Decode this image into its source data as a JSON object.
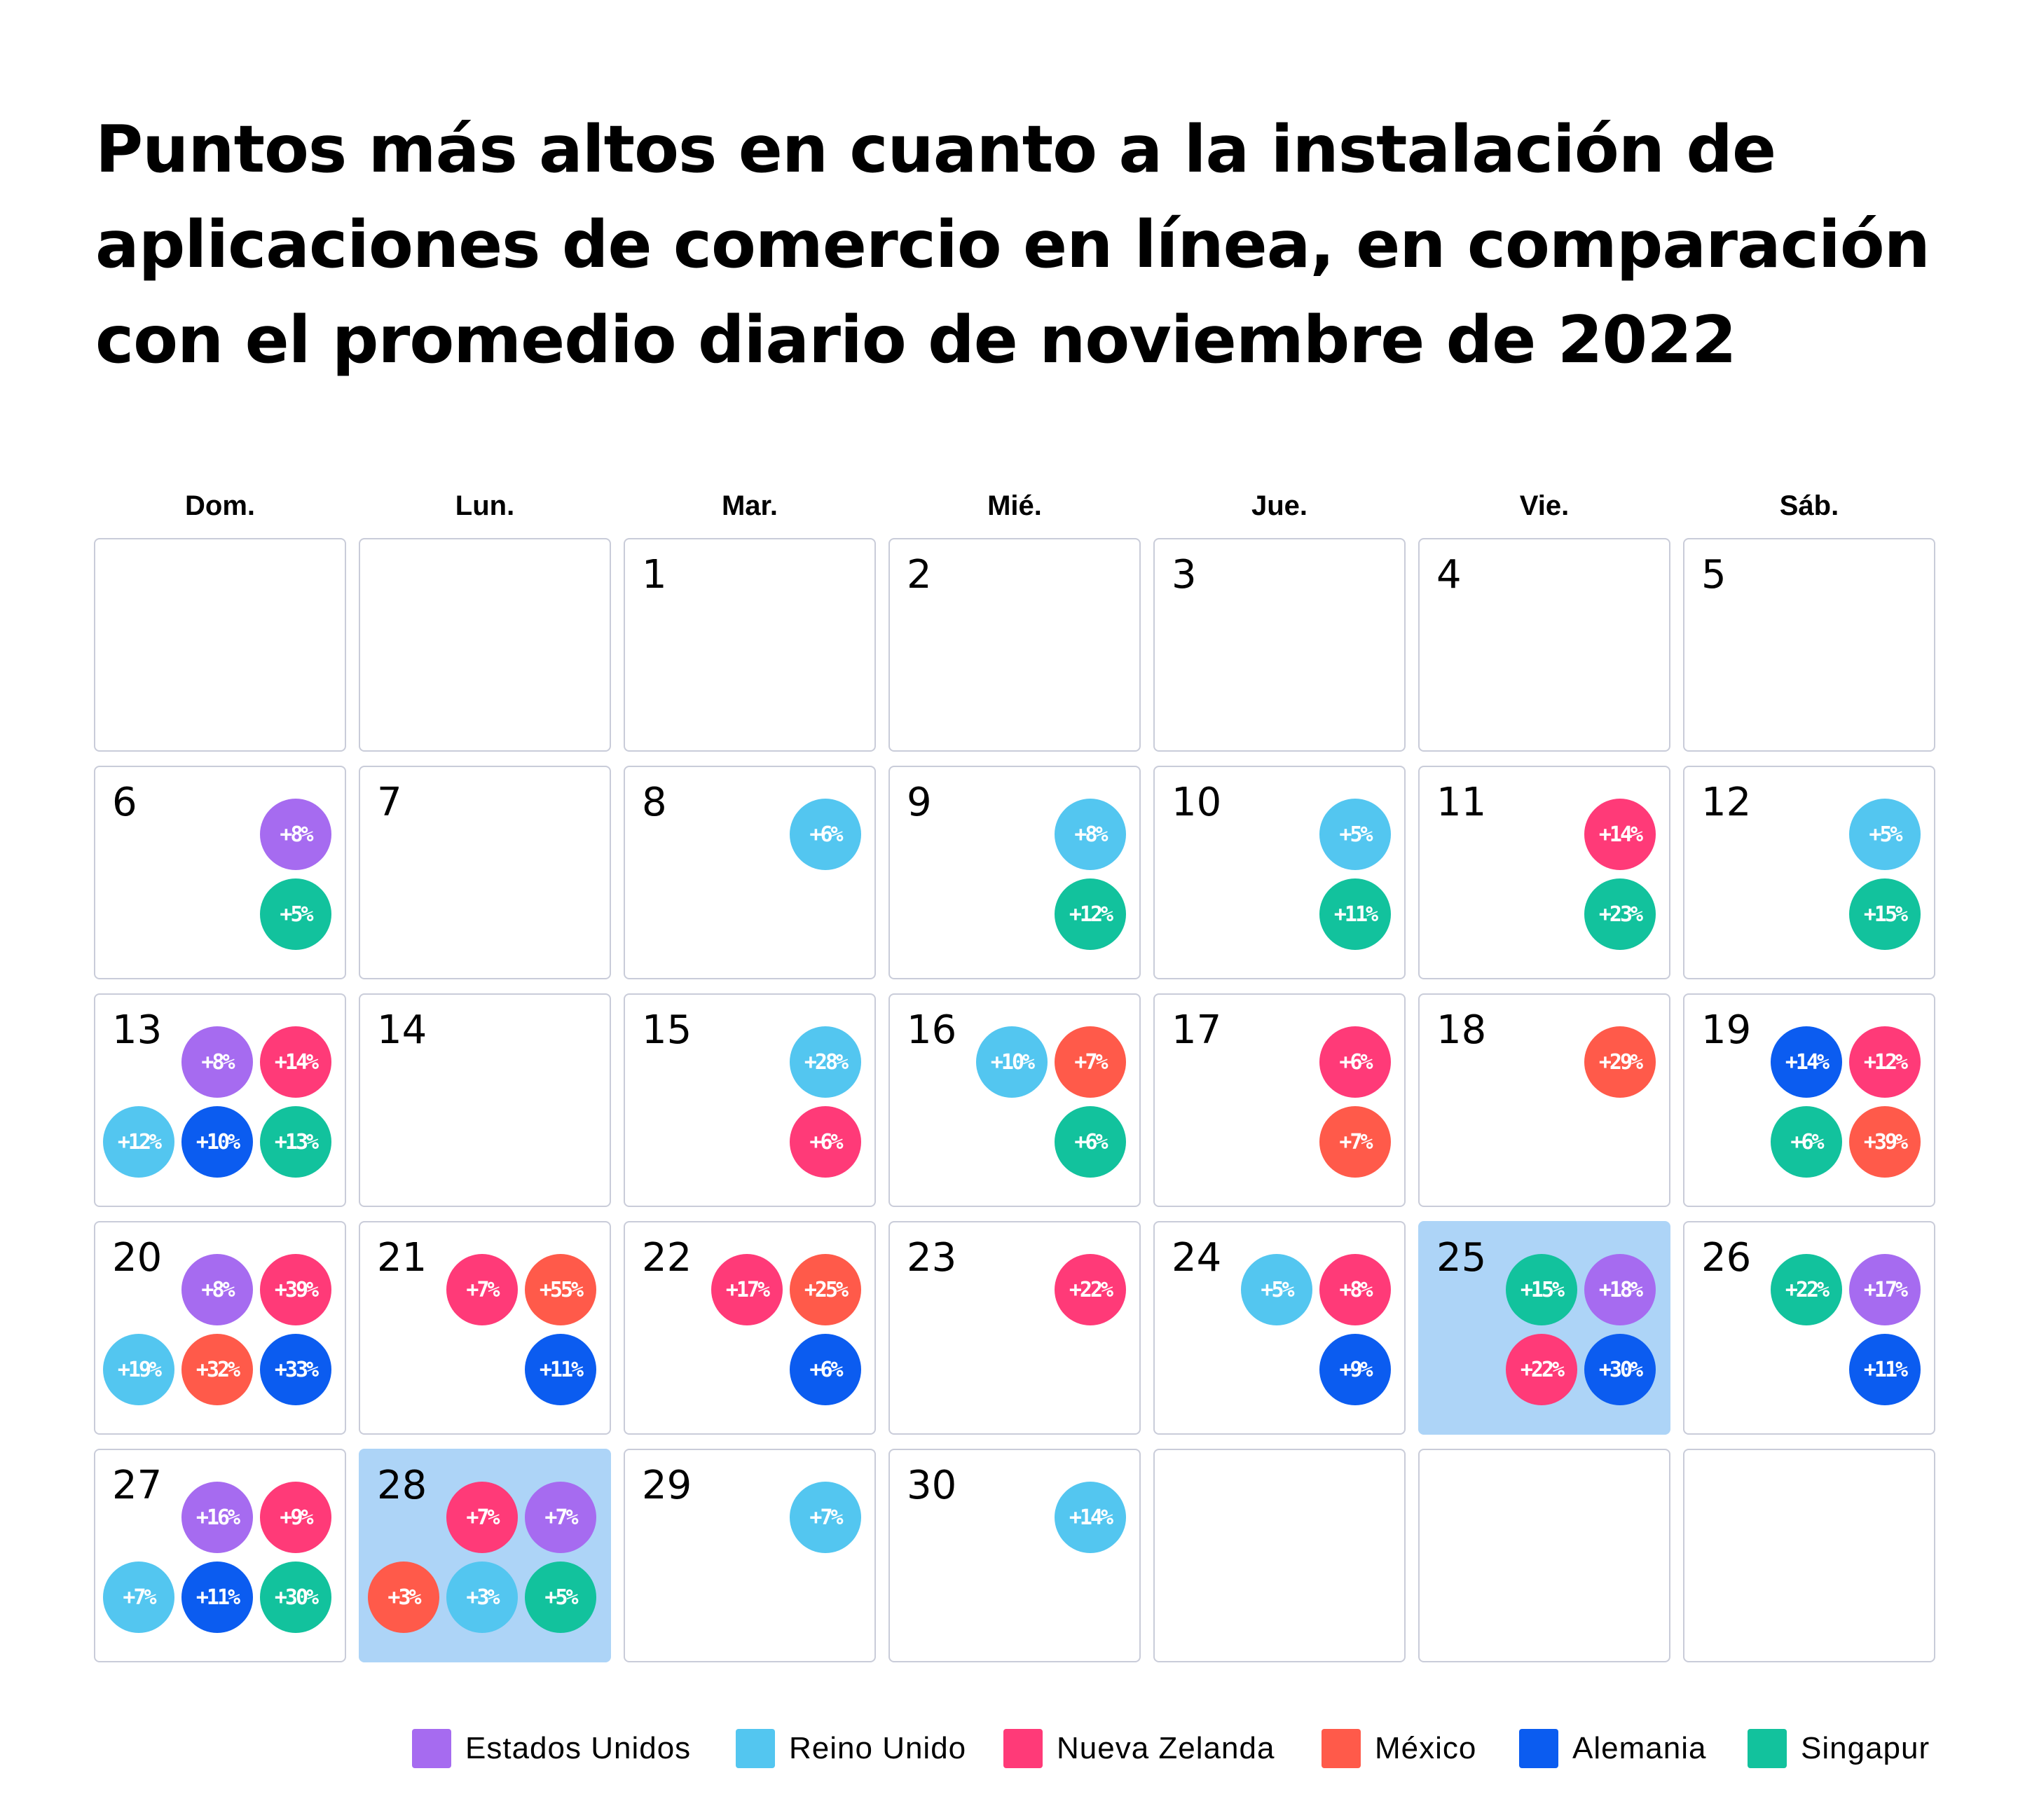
{
  "title": "Puntos más altos en cuanto a la instalación de aplicaciones de comercio en línea, en comparación con el promedio diario de noviembre de 2022",
  "chart_data": {
    "type": "calendar",
    "title": "Puntos más altos en cuanto a la instalación de aplicaciones de comercio en línea, en comparación con el promedio diario de noviembre de 2022",
    "month": "noviembre de 2022",
    "first_weekday_index": 2,
    "days_in_month": 30,
    "weekdays": [
      "Dom.",
      "Lun.",
      "Mar.",
      "Mié.",
      "Jue.",
      "Vie.",
      "Sáb."
    ],
    "highlighted_days": [
      25,
      28
    ],
    "series": [
      {
        "key": "us",
        "name": "Estados Unidos",
        "color": "#a66bf0"
      },
      {
        "key": "uk",
        "name": "Reino Unido",
        "color": "#53c6f0"
      },
      {
        "key": "nz",
        "name": "Nueva Zelanda",
        "color": "#ff3a78"
      },
      {
        "key": "mx",
        "name": "México",
        "color": "#ff5a4a"
      },
      {
        "key": "de",
        "name": "Alemania",
        "color": "#0b5cf0"
      },
      {
        "key": "sg",
        "name": "Singapur",
        "color": "#12c29d"
      }
    ],
    "days": {
      "6": {
        "top": [
          [
            "us",
            "+8%"
          ]
        ],
        "bottom": [
          [
            "sg",
            "+5%"
          ]
        ]
      },
      "8": {
        "top": [
          [
            "uk",
            "+6%"
          ]
        ],
        "bottom": []
      },
      "9": {
        "top": [
          [
            "uk",
            "+8%"
          ]
        ],
        "bottom": [
          [
            "sg",
            "+12%"
          ]
        ]
      },
      "10": {
        "top": [
          [
            "uk",
            "+5%"
          ]
        ],
        "bottom": [
          [
            "sg",
            "+11%"
          ]
        ]
      },
      "11": {
        "top": [
          [
            "nz",
            "+14%"
          ]
        ],
        "bottom": [
          [
            "sg",
            "+23%"
          ]
        ]
      },
      "12": {
        "top": [
          [
            "uk",
            "+5%"
          ]
        ],
        "bottom": [
          [
            "sg",
            "+15%"
          ]
        ]
      },
      "13": {
        "top": [
          [
            "us",
            "+8%"
          ],
          [
            "nz",
            "+14%"
          ]
        ],
        "bottom": [
          [
            "uk",
            "+12%"
          ],
          [
            "de",
            "+10%"
          ],
          [
            "sg",
            "+13%"
          ]
        ]
      },
      "15": {
        "top": [
          [
            "uk",
            "+28%"
          ]
        ],
        "bottom": [
          [
            "nz",
            "+6%"
          ]
        ]
      },
      "16": {
        "top": [
          [
            "uk",
            "+10%"
          ],
          [
            "mx",
            "+7%"
          ]
        ],
        "bottom": [
          [
            "sg",
            "+6%"
          ]
        ]
      },
      "17": {
        "top": [
          [
            "nz",
            "+6%"
          ]
        ],
        "bottom": [
          [
            "mx",
            "+7%"
          ]
        ]
      },
      "18": {
        "top": [
          [
            "mx",
            "+29%"
          ]
        ],
        "bottom": []
      },
      "19": {
        "top": [
          [
            "de",
            "+14%"
          ],
          [
            "nz",
            "+12%"
          ]
        ],
        "bottom": [
          [
            "sg",
            "+6%"
          ],
          [
            "mx",
            "+39%"
          ]
        ]
      },
      "20": {
        "top": [
          [
            "us",
            "+8%"
          ],
          [
            "nz",
            "+39%"
          ]
        ],
        "bottom": [
          [
            "uk",
            "+19%"
          ],
          [
            "mx",
            "+32%"
          ],
          [
            "de",
            "+33%"
          ]
        ]
      },
      "21": {
        "top": [
          [
            "nz",
            "+7%"
          ],
          [
            "mx",
            "+55%"
          ]
        ],
        "bottom": [
          [
            "de",
            "+11%"
          ]
        ]
      },
      "22": {
        "top": [
          [
            "nz",
            "+17%"
          ],
          [
            "mx",
            "+25%"
          ]
        ],
        "bottom": [
          [
            "de",
            "+6%"
          ]
        ]
      },
      "23": {
        "top": [
          [
            "nz",
            "+22%"
          ]
        ],
        "bottom": []
      },
      "24": {
        "top": [
          [
            "uk",
            "+5%"
          ],
          [
            "nz",
            "+8%"
          ]
        ],
        "bottom": [
          [
            "de",
            "+9%"
          ]
        ]
      },
      "25": {
        "top": [
          [
            "sg",
            "+15%"
          ],
          [
            "us",
            "+18%"
          ]
        ],
        "bottom": [
          [
            "nz",
            "+22%"
          ],
          [
            "de",
            "+30%"
          ]
        ]
      },
      "26": {
        "top": [
          [
            "sg",
            "+22%"
          ],
          [
            "us",
            "+17%"
          ]
        ],
        "bottom": [
          [
            "de",
            "+11%"
          ]
        ]
      },
      "27": {
        "top": [
          [
            "us",
            "+16%"
          ],
          [
            "nz",
            "+9%"
          ]
        ],
        "bottom": [
          [
            "uk",
            "+7%"
          ],
          [
            "de",
            "+11%"
          ],
          [
            "sg",
            "+30%"
          ]
        ]
      },
      "28": {
        "top": [
          [
            "nz",
            "+7%"
          ],
          [
            "us",
            "+7%"
          ]
        ],
        "bottom": [
          [
            "mx",
            "+3%"
          ],
          [
            "uk",
            "+3%"
          ],
          [
            "sg",
            "+5%"
          ]
        ]
      },
      "29": {
        "top": [
          [
            "uk",
            "+7%"
          ]
        ],
        "bottom": []
      },
      "30": {
        "top": [
          [
            "uk",
            "+14%"
          ]
        ],
        "bottom": []
      }
    }
  }
}
